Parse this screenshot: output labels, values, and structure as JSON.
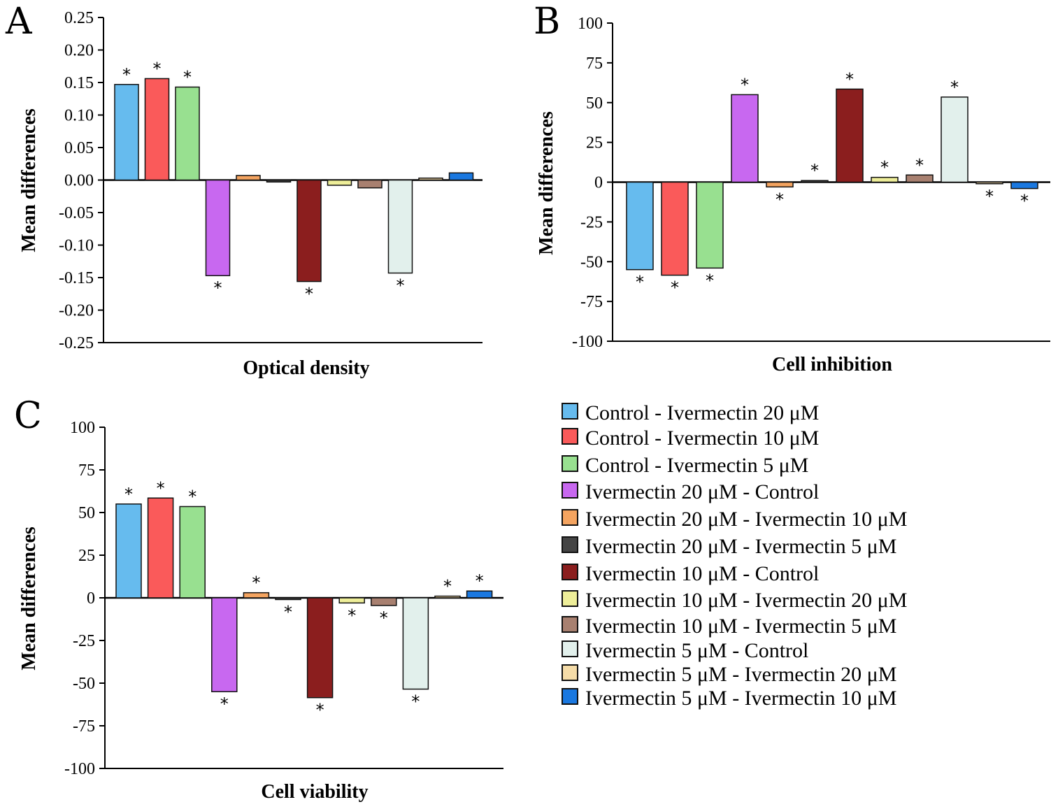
{
  "legend": [
    {
      "label": "Control - Ivermectin 20 μM",
      "color": "#66bbee"
    },
    {
      "label": "Control - Ivermectin 10 μM",
      "color": "#fa5a5a"
    },
    {
      "label": "Control - Ivermectin 5 μM",
      "color": "#98e090"
    },
    {
      "label": "Ivermectin 20 μM - Control",
      "color": "#c868f0"
    },
    {
      "label": "Ivermectin 20 μM - Ivermectin 10 μM",
      "color": "#f4a460"
    },
    {
      "label": "Ivermectin 20 μM - Ivermectin 5 μM",
      "color": "#444444"
    },
    {
      "label": "Ivermectin 10 μM - Control",
      "color": "#8b1e1e"
    },
    {
      "label": "Ivermectin 10 μM - Ivermectin 20 μM",
      "color": "#eeee99"
    },
    {
      "label": "Ivermectin 10 μM - Ivermectin 5 μM",
      "color": "#a88070"
    },
    {
      "label": "Ivermectin 5 μM - Control",
      "color": "#e2f0ec"
    },
    {
      "label": "Ivermectin 5 μM - Ivermectin 20 μM",
      "color": "#f5dca8"
    },
    {
      "label": "Ivermectin 5 μM - Ivermectin 10 μM",
      "color": "#1a78e0"
    }
  ],
  "chart_data": [
    {
      "type": "bar",
      "panel": "A",
      "xlabel": "Optical density",
      "ylabel": "Mean differences",
      "ylim": [
        -0.25,
        0.25
      ],
      "yticks": [
        "0.25",
        "0.20",
        "0.15",
        "0.10",
        "0.05",
        "0.00",
        "-0.05",
        "-0.10",
        "-0.15",
        "-0.20",
        "-0.25"
      ],
      "values": [
        0.147,
        0.156,
        0.143,
        -0.147,
        0.007,
        -0.003,
        -0.156,
        -0.008,
        -0.012,
        -0.143,
        0.003,
        0.011
      ],
      "significant": [
        true,
        true,
        true,
        true,
        false,
        false,
        true,
        false,
        false,
        true,
        false,
        false
      ]
    },
    {
      "type": "bar",
      "panel": "B",
      "xlabel": "Cell inhibition",
      "ylabel": "Mean differences",
      "ylim": [
        -100,
        100
      ],
      "yticks": [
        "100",
        "75",
        "50",
        "25",
        "0",
        "-25",
        "-50",
        "-75",
        "-100"
      ],
      "values": [
        -55,
        -58.5,
        -54,
        55,
        -3,
        1,
        58.5,
        3,
        4.5,
        53.5,
        -1,
        -4
      ],
      "significant": [
        true,
        true,
        true,
        true,
        true,
        true,
        true,
        true,
        true,
        true,
        true,
        true
      ]
    },
    {
      "type": "bar",
      "panel": "C",
      "xlabel": "Cell viability",
      "ylabel": "Mean differences",
      "ylim": [
        -100,
        100
      ],
      "yticks": [
        "100",
        "75",
        "50",
        "25",
        "0",
        "-25",
        "-50",
        "-75",
        "-100"
      ],
      "values": [
        55,
        58.5,
        53.5,
        -55,
        3,
        -1,
        -58.5,
        -3,
        -4.5,
        -53.5,
        1,
        4
      ],
      "significant": [
        true,
        true,
        true,
        true,
        true,
        true,
        true,
        true,
        true,
        true,
        true,
        true
      ]
    }
  ]
}
